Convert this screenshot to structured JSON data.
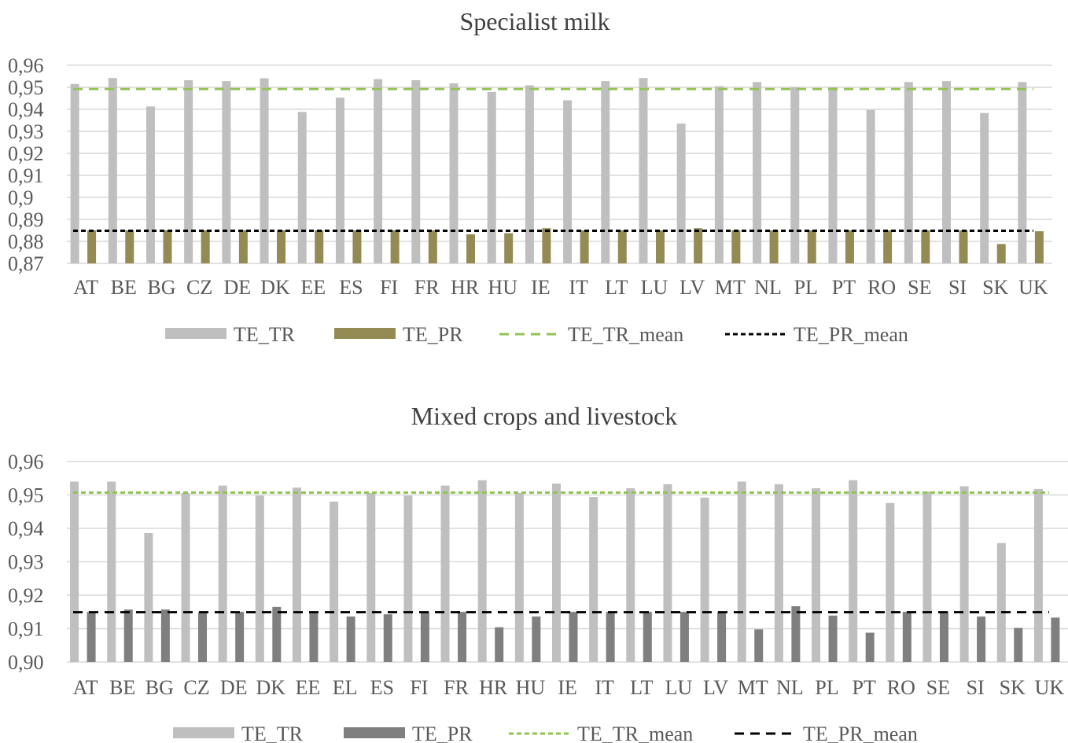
{
  "chart_data": [
    {
      "type": "bar",
      "title": "Specialist milk",
      "categories": [
        "AT",
        "BE",
        "BG",
        "CZ",
        "DE",
        "DK",
        "EE",
        "ES",
        "FI",
        "FR",
        "HR",
        "HU",
        "IE",
        "IT",
        "LT",
        "LU",
        "LV",
        "MT",
        "NL",
        "PL",
        "PT",
        "RO",
        "SE",
        "SI",
        "SK",
        "UK"
      ],
      "ylim": [
        0.87,
        0.96
      ],
      "yticks": [
        "0,87",
        "0,88",
        "0,89",
        "0,9",
        "0,91",
        "0,92",
        "0,93",
        "0,94",
        "0,95",
        "0,96"
      ],
      "ytick_values": [
        0.87,
        0.88,
        0.89,
        0.9,
        0.91,
        0.92,
        0.93,
        0.94,
        0.95,
        0.96
      ],
      "grid": true,
      "legend_position": "bottom",
      "series": [
        {
          "name": "TE_TR",
          "kind": "bar",
          "color": "#bfbfbf",
          "values": [
            0.9515,
            0.9542,
            0.9413,
            0.9532,
            0.9528,
            0.9541,
            0.9388,
            0.9453,
            0.9537,
            0.9532,
            0.9518,
            0.9479,
            0.9509,
            0.9441,
            0.9528,
            0.9542,
            0.9335,
            0.9505,
            0.9524,
            0.95,
            0.95,
            0.9397,
            0.9524,
            0.9528,
            0.9383,
            0.9524
          ]
        },
        {
          "name": "TE_PR",
          "kind": "bar",
          "color": "#948a54",
          "values": [
            0.885,
            0.885,
            0.885,
            0.885,
            0.885,
            0.885,
            0.885,
            0.885,
            0.885,
            0.885,
            0.8832,
            0.8837,
            0.886,
            0.885,
            0.885,
            0.885,
            0.886,
            0.885,
            0.885,
            0.885,
            0.885,
            0.885,
            0.885,
            0.885,
            0.8788,
            0.8846
          ]
        },
        {
          "name": "TE_TR_mean",
          "kind": "line",
          "dash": "dashed",
          "color": "#92c353",
          "value": 0.9492
        },
        {
          "name": "TE_PR_mean",
          "kind": "line",
          "dash": "dotted",
          "color": "#000000",
          "value": 0.8848
        }
      ]
    },
    {
      "type": "bar",
      "title": "Mixed crops and livestock",
      "categories": [
        "AT",
        "BE",
        "BG",
        "CZ",
        "DE",
        "DK",
        "EE",
        "EL",
        "ES",
        "FI",
        "FR",
        "HR",
        "HU",
        "IE",
        "IT",
        "LT",
        "LU",
        "LV",
        "MT",
        "NL",
        "PL",
        "PT",
        "RO",
        "SE",
        "SI",
        "SK",
        "UK"
      ],
      "ylim": [
        0.9,
        0.96
      ],
      "yticks": [
        "0,90",
        "0,91",
        "0,92",
        "0,93",
        "0,94",
        "0,95",
        "0,96"
      ],
      "ytick_values": [
        0.9,
        0.91,
        0.92,
        0.93,
        0.94,
        0.95,
        0.96
      ],
      "grid": true,
      "legend_position": "bottom",
      "series": [
        {
          "name": "TE_TR",
          "kind": "bar",
          "color": "#bfbfbf",
          "values": [
            0.954,
            0.954,
            0.9386,
            0.9506,
            0.9528,
            0.9498,
            0.9522,
            0.948,
            0.9506,
            0.9498,
            0.9528,
            0.9544,
            0.9506,
            0.9534,
            0.9494,
            0.952,
            0.9532,
            0.9492,
            0.954,
            0.9532,
            0.952,
            0.9544,
            0.9476,
            0.951,
            0.9526,
            0.9356,
            0.9518
          ]
        },
        {
          "name": "TE_PR",
          "kind": "bar",
          "color": "#7f7f7f",
          "values": [
            0.915,
            0.9157,
            0.9157,
            0.915,
            0.915,
            0.9165,
            0.9146,
            0.9136,
            0.9143,
            0.915,
            0.915,
            0.9104,
            0.9136,
            0.915,
            0.915,
            0.915,
            0.915,
            0.915,
            0.9098,
            0.9167,
            0.9139,
            0.9088,
            0.915,
            0.915,
            0.9136,
            0.9102,
            0.9133
          ]
        },
        {
          "name": "TE_TR_mean",
          "kind": "line",
          "dash": "dotted",
          "color": "#92c353",
          "value": 0.9507
        },
        {
          "name": "TE_PR_mean",
          "kind": "line",
          "dash": "dashed",
          "color": "#000000",
          "value": 0.9149
        }
      ]
    }
  ],
  "legends": [
    {
      "items": [
        {
          "label": "TE_TR",
          "kind": "bar",
          "color": "#bfbfbf"
        },
        {
          "label": "TE_PR",
          "kind": "bar",
          "color": "#948a54"
        },
        {
          "label": "TE_TR_mean",
          "kind": "line",
          "dash": "dashed",
          "color": "#92c353"
        },
        {
          "label": "TE_PR_mean",
          "kind": "line",
          "dash": "dotted",
          "color": "#000000"
        }
      ]
    },
    {
      "items": [
        {
          "label": "TE_TR",
          "kind": "bar",
          "color": "#bfbfbf"
        },
        {
          "label": "TE_PR",
          "kind": "bar",
          "color": "#7f7f7f"
        },
        {
          "label": "TE_TR_mean",
          "kind": "line",
          "dash": "dotted",
          "color": "#92c353"
        },
        {
          "label": "TE_PR_mean",
          "kind": "line",
          "dash": "dashed",
          "color": "#000000"
        }
      ]
    }
  ]
}
